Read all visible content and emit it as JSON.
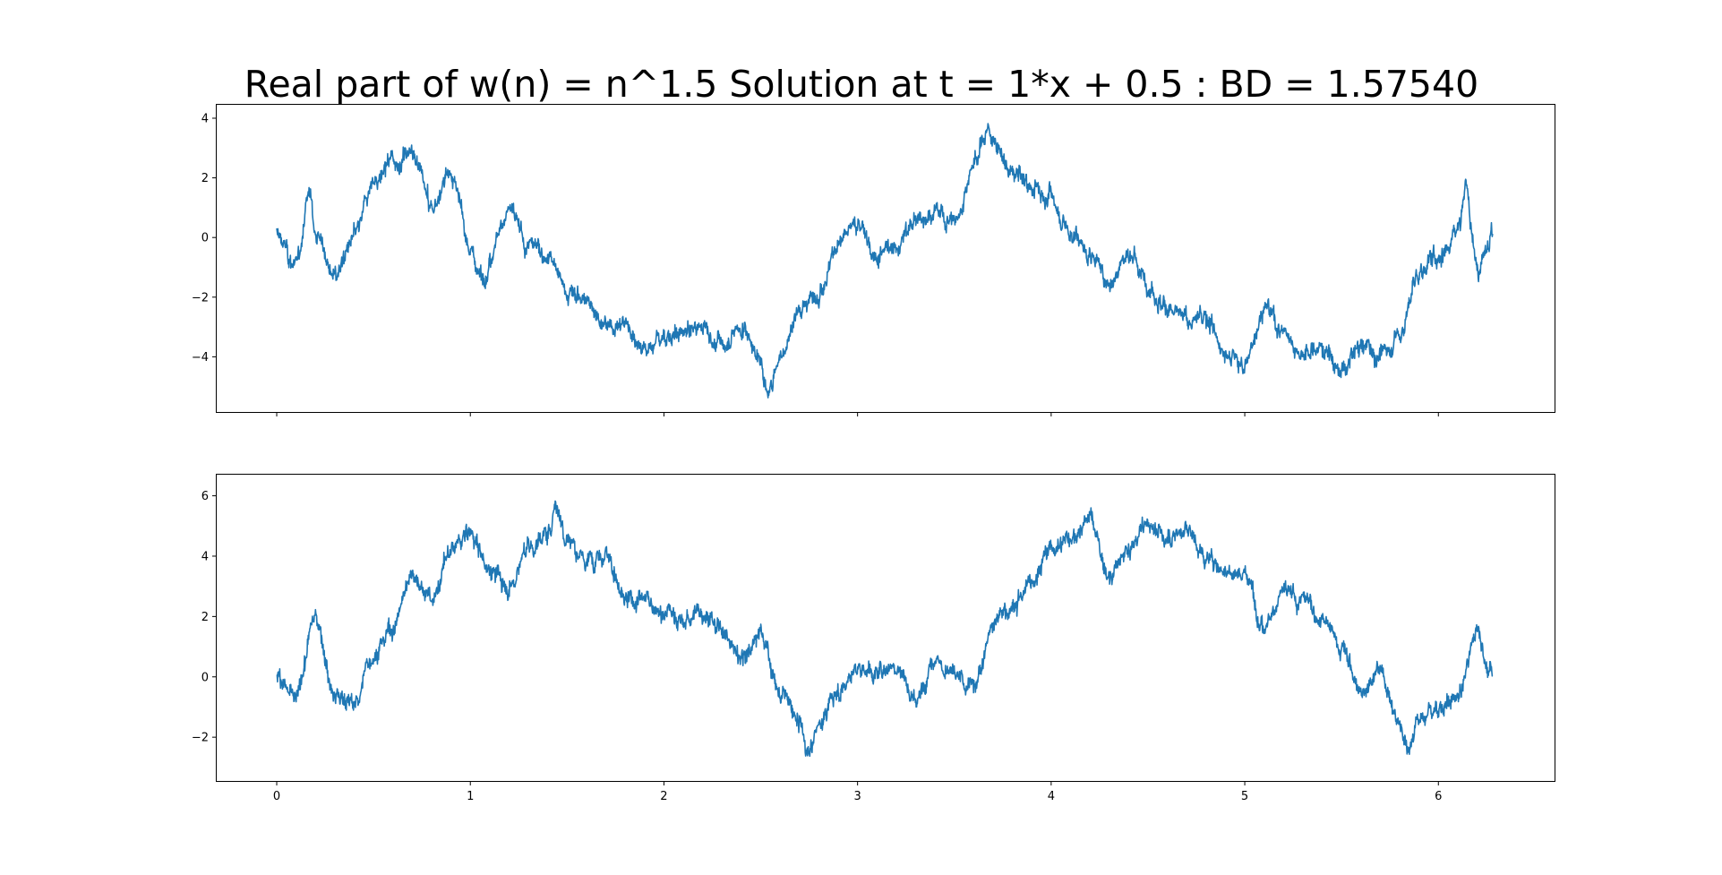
{
  "chart_data": {
    "type": "line",
    "title": "Real part of w(n) = n^1.5 Solution at t = 1*x + 0.5 : BD = 1.57540",
    "shared_x": true,
    "xlim": [
      -0.31,
      6.6
    ],
    "x_ticks": [
      0,
      1,
      2,
      3,
      4,
      5,
      6
    ],
    "x_tick_labels": [
      "0",
      "1",
      "2",
      "3",
      "4",
      "5",
      "6"
    ],
    "line_color": "#1f77b4",
    "grid": false,
    "panels": [
      {
        "ylim": [
          -5.85,
          4.45
        ],
        "y_ticks": [
          -4,
          -2,
          0,
          2,
          4
        ],
        "y_tick_labels": [
          "−4",
          "−2",
          "0",
          "2",
          "4"
        ],
        "series": [
          {
            "x": [
              0,
              0.1,
              0.17,
              0.2,
              0.3,
              0.4,
              0.5,
              0.6,
              0.7,
              0.8,
              0.9,
              1.0,
              1.05,
              1.2,
              1.3,
              1.4,
              1.5,
              1.6,
              1.7,
              1.8,
              1.9,
              2.0,
              2.1,
              2.2,
              2.3,
              2.4,
              2.5,
              2.54,
              2.6,
              2.7,
              2.8,
              2.9,
              3.0,
              3.1,
              3.2,
              3.3,
              3.4,
              3.5,
              3.6,
              3.67,
              3.8,
              3.9,
              4.0,
              4.1,
              4.2,
              4.3,
              4.4,
              4.5,
              4.6,
              4.7,
              4.8,
              4.9,
              5.0,
              5.1,
              5.2,
              5.3,
              5.4,
              5.5,
              5.6,
              5.7,
              5.8,
              5.9,
              6.0,
              6.1,
              6.14,
              6.2,
              6.28
            ],
            "y": [
              0.1,
              -1.0,
              1.5,
              0.2,
              -1.3,
              0.0,
              1.8,
              2.5,
              2.9,
              1.0,
              2.2,
              -0.4,
              -1.3,
              0.9,
              -0.2,
              -0.6,
              -1.8,
              -2.1,
              -3.0,
              -2.8,
              -3.8,
              -3.3,
              -3.2,
              -3.0,
              -3.6,
              -3.0,
              -4.1,
              -5.2,
              -4.0,
              -2.4,
              -1.7,
              -0.2,
              0.5,
              -0.6,
              -0.3,
              0.6,
              0.8,
              0.5,
              2.5,
              3.6,
              2.2,
              1.7,
              1.3,
              0.2,
              -0.6,
              -1.5,
              -0.5,
              -1.5,
              -2.4,
              -2.8,
              -2.6,
              -3.9,
              -4.3,
              -2.3,
              -3.2,
              -3.9,
              -3.7,
              -4.5,
              -3.5,
              -4.0,
              -3.2,
              -1.2,
              -0.6,
              0.3,
              1.7,
              -1.0,
              0.2
            ]
          }
        ]
      },
      {
        "ylim": [
          -3.45,
          6.7
        ],
        "y_ticks": [
          -2,
          0,
          2,
          4,
          6
        ],
        "y_tick_labels": [
          "−2",
          "0",
          "2",
          "4",
          "6"
        ],
        "series": [
          {
            "x": [
              0,
              0.1,
              0.2,
              0.3,
              0.4,
              0.5,
              0.6,
              0.7,
              0.8,
              0.9,
              1.0,
              1.1,
              1.2,
              1.3,
              1.4,
              1.44,
              1.5,
              1.6,
              1.7,
              1.8,
              1.9,
              2.0,
              2.1,
              2.2,
              2.3,
              2.4,
              2.5,
              2.6,
              2.7,
              2.75,
              2.8,
              2.9,
              3.0,
              3.1,
              3.2,
              3.3,
              3.4,
              3.5,
              3.6,
              3.7,
              3.8,
              3.9,
              4.0,
              4.1,
              4.2,
              4.3,
              4.4,
              4.5,
              4.6,
              4.7,
              4.8,
              4.9,
              5.0,
              5.1,
              5.2,
              5.3,
              5.4,
              5.5,
              5.6,
              5.7,
              5.8,
              5.85,
              5.9,
              6.0,
              6.1,
              6.2,
              6.28
            ],
            "y": [
              0.0,
              -0.8,
              2.0,
              -0.6,
              -0.9,
              0.8,
              1.6,
              3.4,
              2.6,
              4.1,
              4.8,
              3.5,
              3.0,
              4.3,
              4.6,
              5.8,
              4.6,
              3.8,
              4.1,
              2.4,
              2.5,
              2.2,
              1.8,
              2.2,
              1.6,
              0.6,
              1.4,
              -0.6,
              -1.5,
              -2.6,
              -1.5,
              -0.5,
              0.3,
              0.2,
              0.4,
              -0.8,
              0.6,
              0.0,
              -0.4,
              1.8,
              2.3,
              3.2,
              4.3,
              4.6,
              5.3,
              3.3,
              4.1,
              5.1,
              4.6,
              4.9,
              4.0,
              3.5,
              3.4,
              1.8,
              2.8,
              2.6,
              1.9,
              1.0,
              -0.5,
              0.2,
              -1.5,
              -2.3,
              -1.4,
              -1.0,
              -0.7,
              1.5,
              0.0
            ]
          }
        ]
      }
    ]
  }
}
